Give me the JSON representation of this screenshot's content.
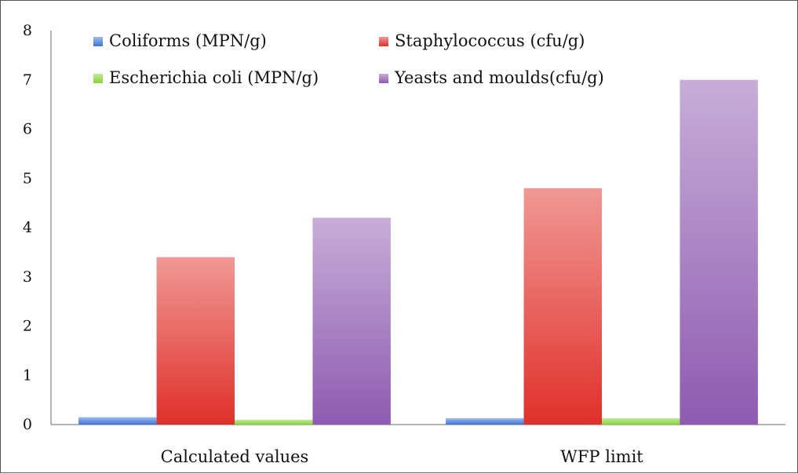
{
  "chart_data": {
    "type": "bar",
    "categories": [
      "Calculated values",
      "WFP limit"
    ],
    "series": [
      {
        "name": "Coliforms (MPN/g)",
        "values": [
          0.15,
          0.13
        ],
        "color": "#3f74d6"
      },
      {
        "name": "Staphylococcus (cfu/g)",
        "values": [
          3.4,
          4.8
        ],
        "color": "#e0302a"
      },
      {
        "name": "Escherichia coli (MPN/g)",
        "values": [
          0.1,
          0.13
        ],
        "color": "#86d23a"
      },
      {
        "name": "Yeasts and moulds(cfu/g)",
        "values": [
          4.2,
          7.0
        ],
        "color": "#8e5bb0"
      }
    ],
    "yticks": [
      "0",
      "1",
      "2",
      "3",
      "4",
      "5",
      "6",
      "7",
      "8"
    ],
    "ylim": [
      0,
      8
    ],
    "grid": false,
    "legend_position": "top"
  }
}
